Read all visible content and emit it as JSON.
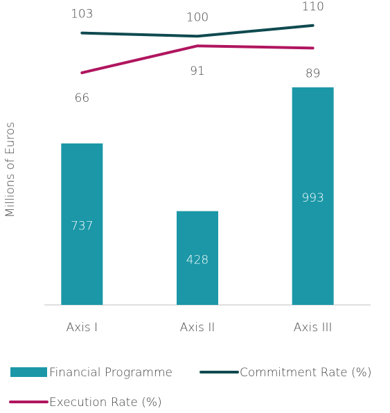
{
  "chart_data": {
    "type": "bar_line",
    "y_axis_label": "Millions of Euros",
    "categories": [
      "Axis I",
      "Axis II",
      "Axis III"
    ],
    "series": [
      {
        "name": "Financial Programme",
        "type": "bar",
        "color": "#1b97a7",
        "values": [
          737,
          428,
          993
        ]
      },
      {
        "name": "Commitment Rate (%)",
        "type": "line",
        "axis": "y2",
        "color": "#0f4a50",
        "values": [
          103,
          100,
          110
        ]
      },
      {
        "name": "Execution Rate (%)",
        "type": "line",
        "axis": "y2",
        "color": "#b0155f",
        "values": [
          66,
          91,
          89
        ]
      }
    ],
    "ylim": [
      0,
      1300
    ],
    "y2lim": [
      -150,
      115
    ],
    "legend": "bottom"
  }
}
